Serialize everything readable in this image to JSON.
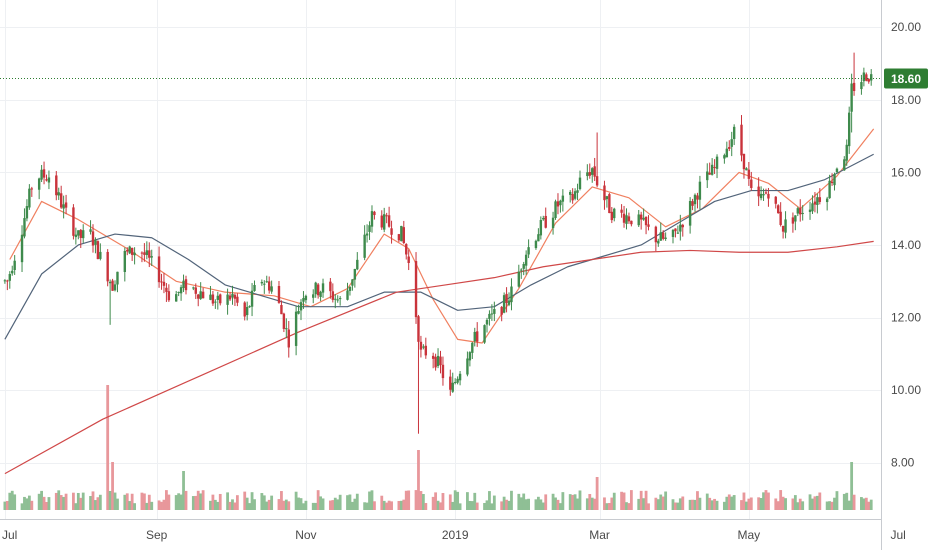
{
  "chart_data": {
    "type": "candlestick",
    "y_ticks": [
      "8.00",
      "10.00",
      "12.00",
      "14.00",
      "16.00",
      "18.00",
      "20.00"
    ],
    "y_tick_values": [
      8,
      10,
      12,
      14,
      16,
      18,
      20
    ],
    "x_ticks": [
      "Jul",
      "Sep",
      "Nov",
      "2019",
      "Mar",
      "May",
      "Jul"
    ],
    "x_tick_days": [
      0,
      62,
      123,
      184,
      243,
      304,
      365
    ],
    "ylim": [
      6.45,
      20.75
    ],
    "xlim_days": [
      -2,
      358
    ],
    "last_price": 18.6,
    "last_price_label": "18.60",
    "grid": true,
    "legend": "none",
    "colors": {
      "up": "#3e8a4c",
      "down": "#c9333b",
      "up_volume": "#8fbf95",
      "down_volume": "#e8979b",
      "ma_short": "#f08060",
      "ma_mid": "#52647a",
      "ma_long": "#d04848",
      "price_tag": "#2e7d32",
      "grid": "#eef0f3",
      "axis_text": "#4a4a4a"
    },
    "key_points": [
      [
        1,
        13.0
      ],
      [
        6,
        14.2
      ],
      [
        12,
        15.9
      ],
      [
        18,
        15.9
      ],
      [
        24,
        15.0
      ],
      [
        30,
        14.2
      ],
      [
        35,
        14.3
      ],
      [
        40,
        13.5
      ],
      [
        44,
        12.9
      ],
      [
        48,
        13.7
      ],
      [
        55,
        13.9
      ],
      [
        62,
        13.3
      ],
      [
        68,
        12.5
      ],
      [
        74,
        12.9
      ],
      [
        80,
        12.7
      ],
      [
        87,
        12.4
      ],
      [
        93,
        12.6
      ],
      [
        98,
        12.0
      ],
      [
        104,
        13.1
      ],
      [
        110,
        12.8
      ],
      [
        116,
        11.4
      ],
      [
        122,
        12.7
      ],
      [
        130,
        12.8
      ],
      [
        138,
        12.4
      ],
      [
        144,
        13.5
      ],
      [
        150,
        14.8
      ],
      [
        156,
        14.6
      ],
      [
        162,
        14.3
      ],
      [
        166,
        13.2
      ],
      [
        170,
        11.0
      ],
      [
        174,
        11.1
      ],
      [
        178,
        10.6
      ],
      [
        182,
        9.9
      ],
      [
        186,
        10.6
      ],
      [
        190,
        11.2
      ],
      [
        196,
        11.8
      ],
      [
        202,
        12.2
      ],
      [
        208,
        12.8
      ],
      [
        212,
        13.7
      ],
      [
        218,
        14.4
      ],
      [
        226,
        15.1
      ],
      [
        232,
        15.3
      ],
      [
        236,
        15.9
      ],
      [
        240,
        16.1
      ],
      [
        244,
        15.4
      ],
      [
        248,
        14.9
      ],
      [
        254,
        14.8
      ],
      [
        260,
        14.6
      ],
      [
        266,
        14.2
      ],
      [
        272,
        14.1
      ],
      [
        278,
        14.8
      ],
      [
        284,
        15.6
      ],
      [
        290,
        16.1
      ],
      [
        294,
        16.6
      ],
      [
        298,
        17.1
      ],
      [
        302,
        16.3
      ],
      [
        306,
        15.1
      ],
      [
        312,
        15.5
      ],
      [
        318,
        14.5
      ],
      [
        324,
        14.9
      ],
      [
        330,
        15.2
      ],
      [
        336,
        15.5
      ],
      [
        340,
        16.2
      ],
      [
        344,
        16.6
      ],
      [
        346,
        18.3
      ],
      [
        349,
        18.5
      ],
      [
        352,
        18.7
      ],
      [
        355,
        18.6
      ]
    ],
    "moving_averages": [
      {
        "color": "#f08060",
        "points": [
          [
            2,
            13.6
          ],
          [
            15,
            15.2
          ],
          [
            30,
            14.7
          ],
          [
            50,
            13.9
          ],
          [
            70,
            13.0
          ],
          [
            90,
            12.7
          ],
          [
            110,
            12.6
          ],
          [
            125,
            12.3
          ],
          [
            140,
            12.8
          ],
          [
            155,
            14.3
          ],
          [
            165,
            13.9
          ],
          [
            175,
            12.5
          ],
          [
            185,
            11.4
          ],
          [
            195,
            11.3
          ],
          [
            210,
            12.8
          ],
          [
            225,
            14.6
          ],
          [
            240,
            15.6
          ],
          [
            255,
            15.3
          ],
          [
            270,
            14.5
          ],
          [
            285,
            15.0
          ],
          [
            300,
            16.0
          ],
          [
            312,
            15.7
          ],
          [
            325,
            15.0
          ],
          [
            340,
            15.9
          ],
          [
            355,
            17.2
          ]
        ]
      },
      {
        "color": "#52647a",
        "points": [
          [
            0,
            11.4
          ],
          [
            15,
            13.2
          ],
          [
            30,
            14.0
          ],
          [
            45,
            14.3
          ],
          [
            60,
            14.2
          ],
          [
            75,
            13.6
          ],
          [
            90,
            12.9
          ],
          [
            105,
            12.6
          ],
          [
            120,
            12.3
          ],
          [
            140,
            12.3
          ],
          [
            155,
            12.7
          ],
          [
            170,
            12.7
          ],
          [
            185,
            12.2
          ],
          [
            200,
            12.3
          ],
          [
            215,
            12.9
          ],
          [
            230,
            13.4
          ],
          [
            245,
            13.7
          ],
          [
            260,
            14.0
          ],
          [
            275,
            14.6
          ],
          [
            290,
            15.2
          ],
          [
            305,
            15.5
          ],
          [
            320,
            15.5
          ],
          [
            335,
            15.8
          ],
          [
            355,
            16.5
          ]
        ]
      },
      {
        "color": "#d04848",
        "points": [
          [
            0,
            7.7
          ],
          [
            40,
            9.2
          ],
          [
            80,
            10.4
          ],
          [
            120,
            11.6
          ],
          [
            160,
            12.7
          ],
          [
            180,
            12.9
          ],
          [
            200,
            13.1
          ],
          [
            220,
            13.4
          ],
          [
            240,
            13.6
          ],
          [
            260,
            13.8
          ],
          [
            280,
            13.85
          ],
          [
            300,
            13.8
          ],
          [
            320,
            13.8
          ],
          [
            340,
            13.95
          ],
          [
            355,
            14.1
          ]
        ]
      }
    ],
    "volume_spikes": [
      [
        20,
        2.8
      ],
      [
        42,
        4.2
      ],
      [
        44,
        1.6
      ],
      [
        73,
        1.3
      ],
      [
        152,
        1.2
      ],
      [
        169,
        2.0
      ],
      [
        242,
        1.1
      ],
      [
        346,
        1.6
      ]
    ]
  }
}
